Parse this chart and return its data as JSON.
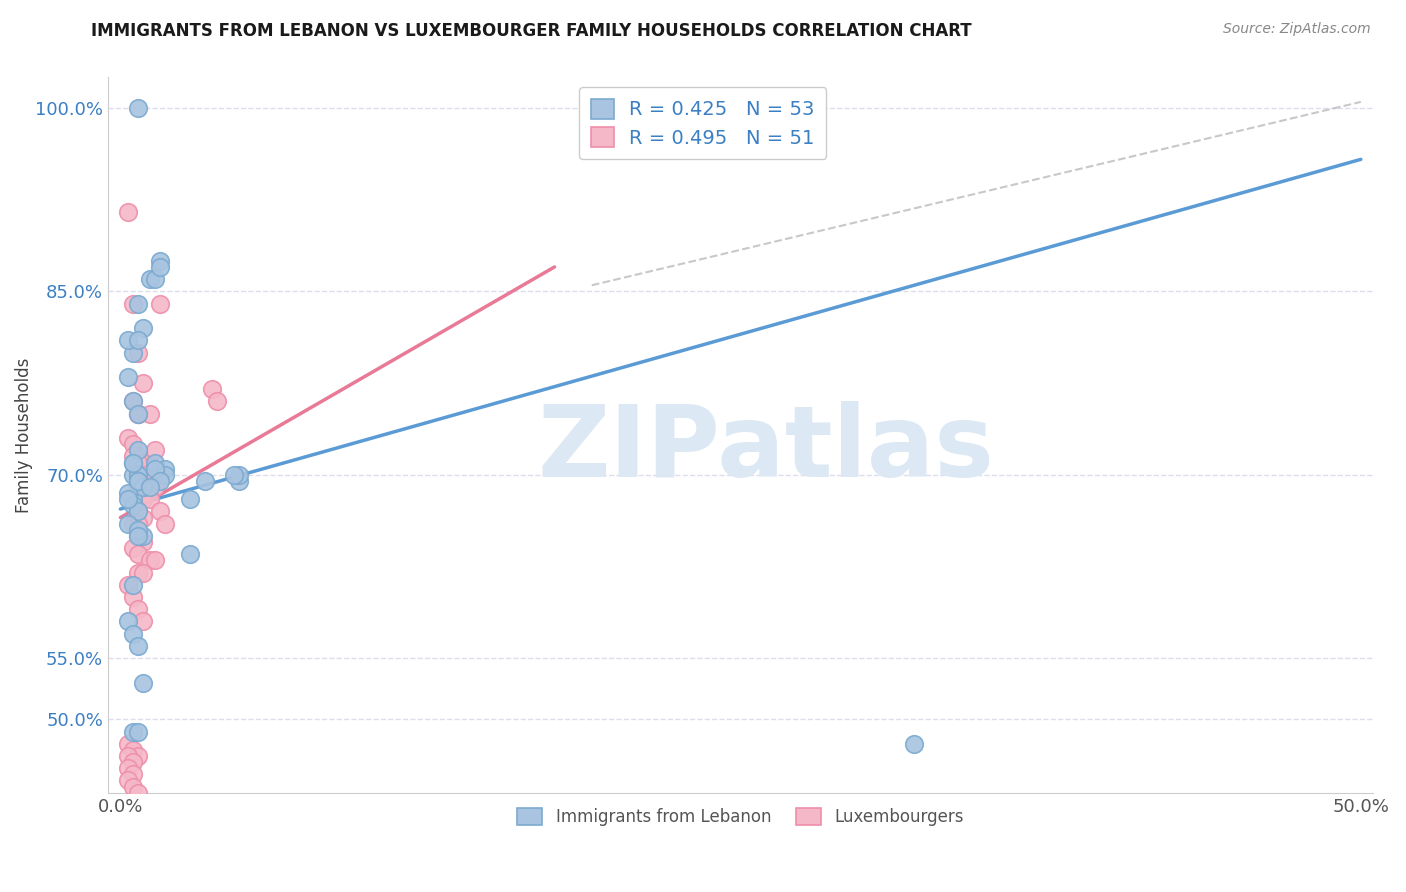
{
  "title": "IMMIGRANTS FROM LEBANON VS LUXEMBOURGER FAMILY HOUSEHOLDS CORRELATION CHART",
  "source": "Source: ZipAtlas.com",
  "ylabel": "Family Households",
  "legend_line1_r": "R = 0.425",
  "legend_line1_n": "N = 53",
  "legend_line2_r": "R = 0.495",
  "legend_line2_n": "N = 51",
  "legend_label1": "Immigrants from Lebanon",
  "legend_label2": "Luxembourgers",
  "color_blue_fill": "#A8C4E0",
  "color_blue_edge": "#7BAAD0",
  "color_pink_fill": "#F5B8C8",
  "color_pink_edge": "#EE8FAA",
  "color_blue_line": "#5B9BD5",
  "color_pink_line": "#E87A97",
  "color_dash": "#BBBBBB",
  "blue_scatter_x": [
    0.005,
    0.007,
    0.003,
    0.005,
    0.007,
    0.003,
    0.005,
    0.007,
    0.007,
    0.012,
    0.014,
    0.016,
    0.016,
    0.009,
    0.007,
    0.005,
    0.007,
    0.009,
    0.005,
    0.007,
    0.014,
    0.018,
    0.018,
    0.007,
    0.009,
    0.003,
    0.005,
    0.007,
    0.003,
    0.005,
    0.007,
    0.014,
    0.016,
    0.028,
    0.034,
    0.048,
    0.048,
    0.028,
    0.046,
    0.012,
    0.009,
    0.007,
    0.007,
    0.005,
    0.003,
    0.005,
    0.007,
    0.005,
    0.007,
    0.32,
    0.007,
    0.009,
    0.003
  ],
  "blue_scatter_y": [
    0.8,
    0.84,
    0.78,
    0.76,
    0.75,
    0.81,
    0.7,
    0.69,
    0.7,
    0.86,
    0.86,
    0.875,
    0.87,
    0.82,
    0.81,
    0.71,
    0.7,
    0.69,
    0.68,
    0.72,
    0.71,
    0.705,
    0.7,
    0.695,
    0.69,
    0.685,
    0.675,
    0.67,
    0.66,
    0.71,
    0.695,
    0.705,
    0.695,
    0.68,
    0.695,
    0.695,
    0.7,
    0.635,
    0.7,
    0.69,
    0.65,
    0.655,
    0.65,
    0.61,
    0.58,
    0.57,
    0.56,
    0.49,
    1.0,
    0.48,
    0.49,
    0.53,
    0.68
  ],
  "pink_scatter_x": [
    0.003,
    0.005,
    0.007,
    0.009,
    0.005,
    0.007,
    0.003,
    0.005,
    0.007,
    0.009,
    0.012,
    0.014,
    0.005,
    0.007,
    0.012,
    0.009,
    0.014,
    0.016,
    0.009,
    0.012,
    0.007,
    0.009,
    0.005,
    0.007,
    0.016,
    0.018,
    0.007,
    0.009,
    0.005,
    0.007,
    0.012,
    0.014,
    0.007,
    0.009,
    0.003,
    0.005,
    0.007,
    0.009,
    0.007,
    0.037,
    0.039,
    0.003,
    0.005,
    0.007,
    0.003,
    0.005,
    0.003,
    0.005,
    0.003,
    0.005,
    0.007
  ],
  "pink_scatter_y": [
    0.915,
    0.84,
    0.8,
    0.775,
    0.76,
    0.75,
    0.73,
    0.725,
    0.715,
    0.71,
    0.705,
    0.72,
    0.715,
    0.71,
    0.75,
    0.7,
    0.69,
    0.84,
    0.68,
    0.68,
    0.67,
    0.665,
    0.66,
    0.66,
    0.67,
    0.66,
    0.65,
    0.645,
    0.64,
    0.635,
    0.63,
    0.63,
    0.62,
    0.62,
    0.61,
    0.6,
    0.59,
    0.58,
    0.75,
    0.77,
    0.76,
    0.48,
    0.475,
    0.47,
    0.47,
    0.465,
    0.46,
    0.455,
    0.45,
    0.445,
    0.44
  ],
  "blue_line_x": [
    0.0,
    0.5
  ],
  "blue_line_y": [
    0.672,
    0.958
  ],
  "pink_line_x": [
    0.0,
    0.175
  ],
  "pink_line_y": [
    0.665,
    0.87
  ],
  "dashed_line_x": [
    0.19,
    0.5
  ],
  "dashed_line_y": [
    0.855,
    1.005
  ],
  "xlim": [
    -0.005,
    0.505
  ],
  "ylim": [
    0.44,
    1.025
  ],
  "ytick_positions": [
    0.5,
    0.55,
    0.7,
    0.85,
    1.0
  ],
  "ytick_labels": [
    "50.0%",
    "55.0%",
    "70.0%",
    "85.0%",
    "100.0%"
  ],
  "xtick_positions": [
    0.0,
    0.1,
    0.2,
    0.3,
    0.4,
    0.5
  ],
  "xtick_labels": [
    "0.0%",
    "",
    "",
    "",
    "",
    "50.0%"
  ],
  "grid_yticks": [
    0.5,
    0.55,
    0.7,
    0.85,
    1.0
  ],
  "background_color": "#FFFFFF",
  "grid_color": "#DDDDEE",
  "watermark_text": "ZIPatlas",
  "watermark_color": "#DCE9F5"
}
